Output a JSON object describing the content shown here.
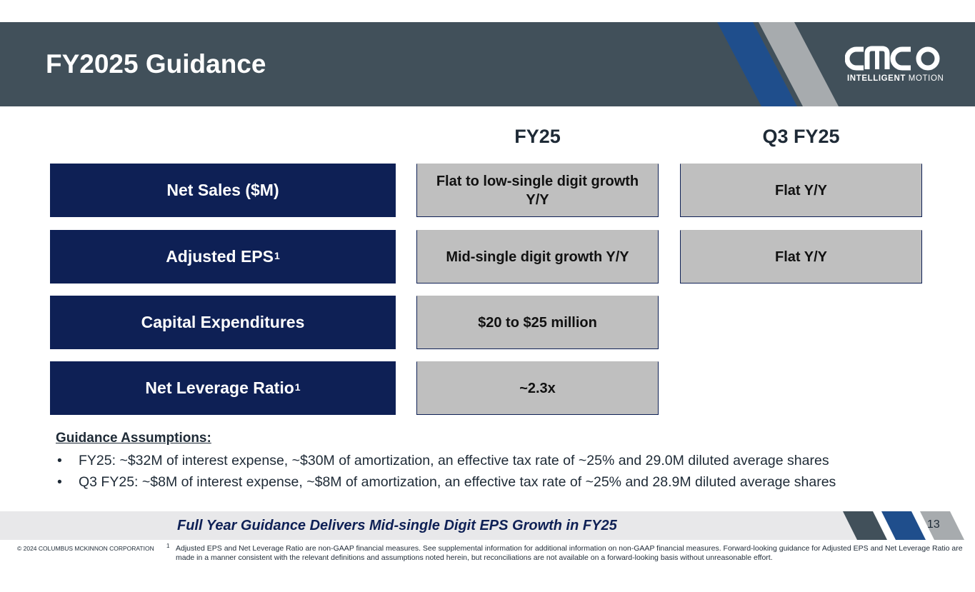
{
  "header": {
    "title": "FY2025 Guidance",
    "logo_sub_bold": "INTELLIGENT",
    "logo_sub_rest": " MOTION"
  },
  "columns": [
    "FY25",
    "Q3 FY25"
  ],
  "rows": [
    {
      "label": "Net Sales ($M)",
      "sup": "",
      "fy25": "Flat to low-single digit growth Y/Y",
      "q3": "Flat Y/Y"
    },
    {
      "label": "Adjusted EPS",
      "sup": "1",
      "fy25": "Mid-single digit growth Y/Y",
      "q3": "Flat Y/Y"
    },
    {
      "label": "Capital Expenditures",
      "sup": "",
      "fy25": "$20 to $25 million",
      "q3": ""
    },
    {
      "label": "Net Leverage Ratio",
      "sup": "1",
      "fy25": "~2.3x",
      "q3": ""
    }
  ],
  "assumptions": {
    "title": "Guidance Assumptions:",
    "bullet_glyph": "•",
    "items": [
      "FY25: ~$32M of interest expense, ~$30M of amortization, an effective tax rate of ~25% and 29.0M diluted average shares",
      "Q3 FY25: ~$8M of interest expense, ~$8M of amortization, an effective tax rate of ~25% and 28.9M diluted average shares"
    ]
  },
  "banner": "Full Year Guidance Delivers Mid-single Digit EPS Growth in FY25",
  "page_number": "13",
  "copyright": "© 2024 COLUMBUS MCKINNON CORPORATION",
  "footnote": {
    "mark": "1",
    "text": "Adjusted EPS and Net Leverage Ratio are non-GAAP financial measures. See supplemental information for additional information on non-GAAP financial measures. Forward-looking guidance for Adjusted EPS and Net Leverage Ratio are made in a manner consistent with the relevant definitions and assumptions noted herein, but reconciliations are not available on a forward-looking basis without unreasonable effort."
  },
  "colors": {
    "header_bg": "#41505a",
    "navy": "#0e2055",
    "blue_stripe": "#1f4e8c",
    "gray_stripe": "#a7abae",
    "cell_bg": "#bfbfbf"
  }
}
